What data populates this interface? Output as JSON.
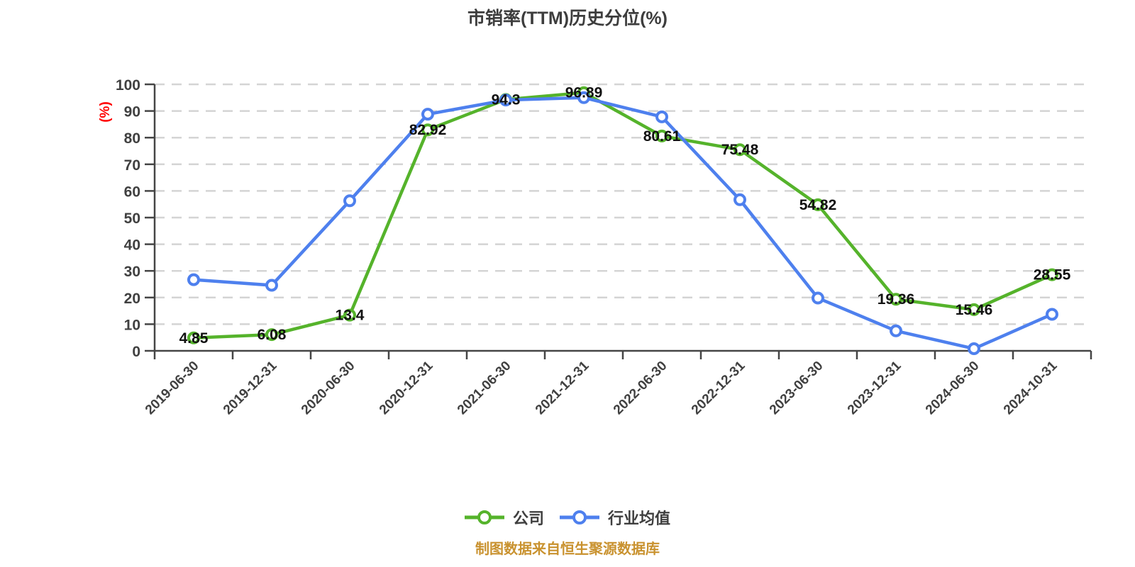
{
  "source_note": "制图数据来自恒生聚源数据库",
  "colors": {
    "title_text": "#3d3d3d",
    "axis_line": "#454545",
    "tick_text": "#404040",
    "grid_line": "#d4d4d4",
    "point_label_text": "#111111",
    "y_unit_text": "#ff0000",
    "source_text": "#c9922f",
    "series_company": "#55b32b",
    "series_industry": "#4e80ee",
    "marker_fill": "#ffffff"
  },
  "chart_data": {
    "type": "line",
    "title": "市销率(TTM)历史分位(%)",
    "xlabel": "",
    "ylabel": "(%)",
    "ylim": [
      0,
      100
    ],
    "y_tick_step": 10,
    "grid": "horizontal dashed",
    "legend_position": "bottom",
    "x_tick_labels_rotated": true,
    "categories": [
      "2019-06-30",
      "2019-12-31",
      "2020-06-30",
      "2020-12-31",
      "2021-06-30",
      "2021-12-31",
      "2022-06-30",
      "2022-12-31",
      "2023-06-30",
      "2023-12-31",
      "2024-06-30",
      "2024-10-31"
    ],
    "series": [
      {
        "name": "公司",
        "key": "company",
        "color": "#55b32b",
        "values": [
          4.85,
          6.08,
          13.4,
          82.92,
          94.3,
          96.89,
          80.61,
          75.48,
          54.82,
          19.36,
          15.46,
          28.55
        ],
        "point_labels": [
          "4.85",
          "6.08",
          "13.4",
          "82.92",
          "94.3",
          "96.89",
          "80.61",
          "75.48",
          "54.82",
          "19.36",
          "15.46",
          "28.55"
        ],
        "show_point_labels": true
      },
      {
        "name": "行业均值",
        "key": "industry-avg",
        "color": "#4e80ee",
        "values": [
          26.7,
          24.6,
          56.3,
          88.8,
          94.1,
          95.0,
          87.8,
          56.7,
          19.8,
          7.5,
          0.8,
          13.7
        ],
        "point_labels": [],
        "show_point_labels": false
      }
    ]
  }
}
